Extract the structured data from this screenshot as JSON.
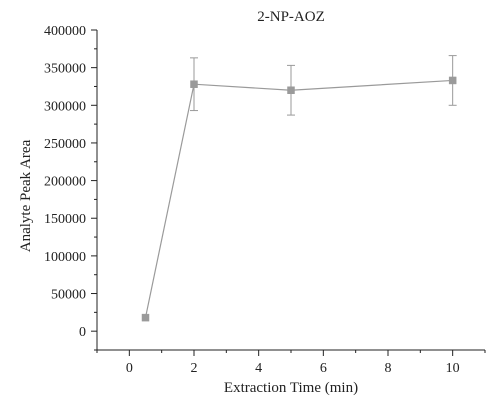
{
  "chart_data": {
    "type": "line",
    "title": "2-NP-AOZ",
    "xlabel": "Extraction Time (min)",
    "ylabel": "Analyte Peak Area",
    "xlim": [
      -1,
      11
    ],
    "ylim": [
      -25000,
      400000
    ],
    "x_ticks": [
      0,
      2,
      4,
      6,
      8,
      10
    ],
    "x_tick_labels": [
      "0",
      "2",
      "4",
      "6",
      "8",
      "10"
    ],
    "y_ticks": [
      0,
      50000,
      100000,
      150000,
      200000,
      250000,
      300000,
      350000,
      400000
    ],
    "y_tick_labels": [
      "0",
      "50000",
      "100000",
      "150000",
      "200000",
      "250000",
      "300000",
      "350000",
      "400000"
    ],
    "grid": false,
    "series": [
      {
        "x": [
          0.5,
          2,
          5,
          10
        ],
        "y": [
          18000,
          328000,
          320000,
          333000
        ],
        "error": [
          0,
          35000,
          33000,
          33000
        ],
        "marker": "square",
        "color": "#9a9a9a"
      }
    ]
  }
}
